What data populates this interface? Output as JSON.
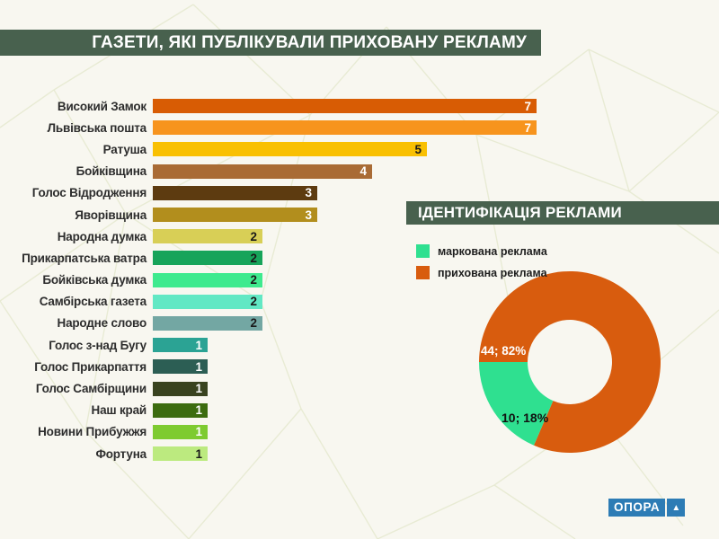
{
  "page": {
    "background": "#f8f7f0",
    "accent_green": "#48614e"
  },
  "title_bar": {
    "text": "ГАЗЕТИ, ЯКІ ПУБЛІКУВАЛИ ПРИХОВАНУ РЕКЛАМУ"
  },
  "section2": {
    "title": "ІДЕНТИФІКАЦІЯ РЕКЛАМИ"
  },
  "legend": {
    "items": [
      {
        "label": "маркована реклама",
        "color": "#2fe090"
      },
      {
        "label": "прихована реклама",
        "color": "#d85c0e"
      }
    ]
  },
  "logo": {
    "text": "ОПОРА",
    "triangle_icon": "▲",
    "color": "#2d7cb5"
  },
  "chart_data": [
    {
      "type": "bar",
      "orientation": "horizontal",
      "title": "ГАЗЕТИ, ЯКІ ПУБЛІКУВАЛИ ПРИХОВАНУ РЕКЛАМУ",
      "xlabel": "",
      "ylabel": "",
      "xlim": [
        0,
        7
      ],
      "grid": false,
      "axes_hidden": true,
      "categories": [
        "Високий Замок",
        "Львівська пошта",
        "Ратуша",
        "Бойківщина",
        "Голос Відродження",
        "Яворівщина",
        "Народна думка",
        "Прикарпатська ватра",
        "Бойківська думка",
        "Самбірська газета",
        "Народне слово",
        "Голос з-над Бугу",
        "Голос Прикарпаття",
        "Голос Самбірщини",
        "Наш край",
        "Новини Прибужжя",
        "Фортуна"
      ],
      "values": [
        7,
        7,
        5,
        4,
        3,
        3,
        2,
        2,
        2,
        2,
        2,
        1,
        1,
        1,
        1,
        1,
        1
      ],
      "bar_colors": [
        "#d85c04",
        "#f7941d",
        "#f9c002",
        "#a96b35",
        "#5d3b10",
        "#b28e1d",
        "#d8cf56",
        "#17a45a",
        "#3eea8e",
        "#62e8c4",
        "#73a7a3",
        "#2ba394",
        "#2c5e54",
        "#39431f",
        "#3c6c0f",
        "#7ecb30",
        "#bcea7f"
      ],
      "value_label_colors": [
        "#ffffff",
        "#ffffff",
        "#1a1a1a",
        "#ffffff",
        "#ffffff",
        "#ffffff",
        "#1a1a1a",
        "#1a1a1a",
        "#1a1a1a",
        "#1a1a1a",
        "#1a1a1a",
        "#ffffff",
        "#ffffff",
        "#ffffff",
        "#ffffff",
        "#ffffff",
        "#1a1a1a"
      ]
    },
    {
      "type": "pie",
      "subtype": "donut",
      "title": "ІДЕНТИФІКАЦІЯ РЕКЛАМИ",
      "start_angle_deg": 270,
      "direction": "clockwise",
      "legend_position": "top-left",
      "slices": [
        {
          "label": "прихована реклама",
          "value": 44,
          "percent": 82,
          "color": "#d85c0e",
          "data_label": "44; 82%"
        },
        {
          "label": "маркована реклама",
          "value": 10,
          "percent": 18,
          "color": "#2fe090",
          "data_label": "10; 18%"
        }
      ]
    }
  ]
}
